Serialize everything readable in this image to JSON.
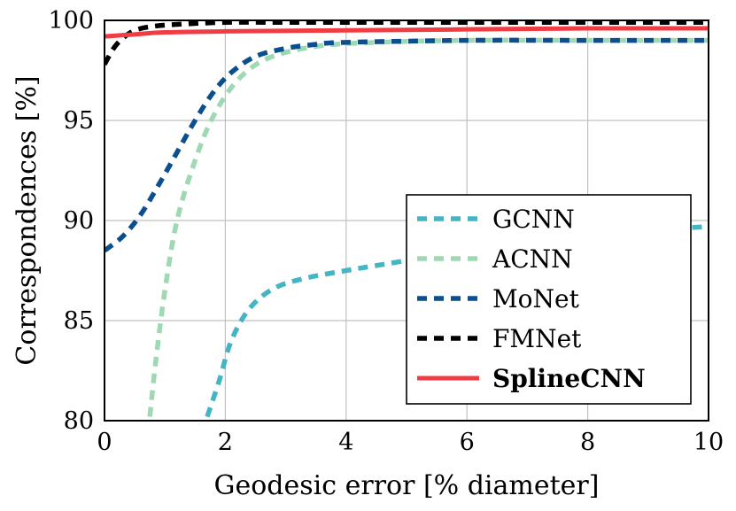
{
  "chart_data": {
    "type": "line",
    "xlabel": "Geodesic error [% diameter]",
    "ylabel": "Correspondences [%]",
    "xlim": [
      0,
      10
    ],
    "ylim": [
      80,
      100
    ],
    "x_ticks": [
      "0",
      "2",
      "4",
      "6",
      "8",
      "10"
    ],
    "y_ticks": [
      "80",
      "85",
      "90",
      "95",
      "100"
    ],
    "grid": true,
    "legend_position": "bottom-right",
    "series": [
      {
        "name": "GCNN",
        "color": "#45b5c4",
        "dash": "dashed",
        "x": [
          1.7,
          1.9,
          2.1,
          2.4,
          2.8,
          3.3,
          4.0,
          5.0,
          6.0,
          7.0,
          8.0,
          9.0,
          10.0
        ],
        "y": [
          80.2,
          82.0,
          84.0,
          85.6,
          86.6,
          87.1,
          87.5,
          88.0,
          88.5,
          88.9,
          89.2,
          89.5,
          89.7
        ]
      },
      {
        "name": "ACNN",
        "color": "#9fd9b3",
        "dash": "dashed",
        "x": [
          0.75,
          0.85,
          1.0,
          1.2,
          1.5,
          1.8,
          2.2,
          2.7,
          3.5,
          4.5,
          6.0,
          8.0,
          10.0
        ],
        "y": [
          80.2,
          83.0,
          86.5,
          90.0,
          93.0,
          95.2,
          97.0,
          98.1,
          98.7,
          98.9,
          99.0,
          99.0,
          99.0
        ]
      },
      {
        "name": "MoNet",
        "color": "#0b4f8f",
        "dash": "dashed",
        "x": [
          0.0,
          0.3,
          0.6,
          0.9,
          1.2,
          1.5,
          1.8,
          2.1,
          2.5,
          3.0,
          3.5,
          4.0,
          6.0,
          8.0,
          10.0
        ],
        "y": [
          88.5,
          89.2,
          90.3,
          91.8,
          93.4,
          95.0,
          96.4,
          97.4,
          98.2,
          98.6,
          98.8,
          98.9,
          99.0,
          99.0,
          99.0
        ]
      },
      {
        "name": "FMNet",
        "color": "#000000",
        "dash": "dashed",
        "x": [
          0.0,
          0.15,
          0.3,
          0.5,
          0.8,
          1.2,
          2.0,
          3.0,
          5.0,
          10.0
        ],
        "y": [
          97.8,
          98.6,
          99.1,
          99.5,
          99.7,
          99.8,
          99.9,
          99.9,
          99.9,
          99.9
        ]
      },
      {
        "name": "SplineCNN",
        "color": "#f03c42",
        "dash": "solid",
        "x": [
          0.0,
          0.5,
          1.0,
          2.0,
          4.0,
          6.0,
          8.0,
          10.0
        ],
        "y": [
          99.2,
          99.3,
          99.4,
          99.45,
          99.5,
          99.55,
          99.6,
          99.6
        ]
      }
    ]
  }
}
